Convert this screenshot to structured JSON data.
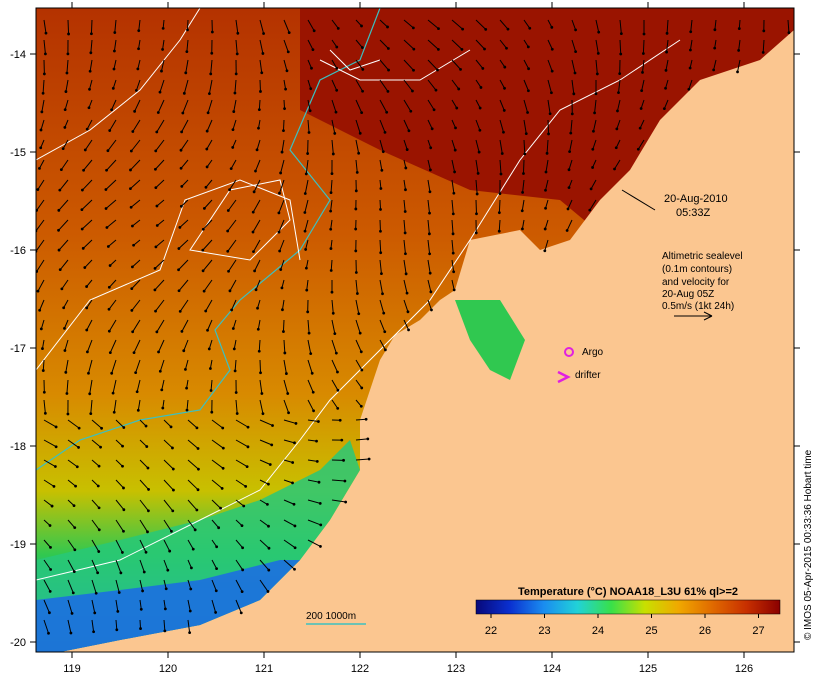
{
  "map": {
    "timestamp_date": "20-Aug-2010",
    "timestamp_time": "05:33Z",
    "altimetry_note": [
      "Altimetric sealevel",
      "(0.1m contours)",
      "and velocity for",
      "20-Aug 05Z",
      "0.5m/s (1kt 24h)"
    ],
    "legend_argo": "Argo",
    "legend_drifter": "drifter",
    "isobath_label": "200  1000m",
    "credit": "© IMOS 05-Apr-2015 00:33:36 Hobart time",
    "colorbar": {
      "title": "Temperature (°C) NOAA18_L3U 61% ql>=2",
      "ticks": [
        "22",
        "23",
        "24",
        "25",
        "26",
        "27"
      ],
      "colors": [
        "#08087a",
        "#0a30d0",
        "#1a8cf0",
        "#21d2d8",
        "#38e04a",
        "#c8e000",
        "#f0a800",
        "#e06a00",
        "#c83000",
        "#8a0000"
      ]
    },
    "lon_ticks": [
      "119",
      "120",
      "121",
      "122",
      "123",
      "124",
      "125",
      "126"
    ],
    "lat_ticks": [
      "-14",
      "-15",
      "-16",
      "-17",
      "-18",
      "-19",
      "-20"
    ],
    "colors": {
      "land": "#fbc690",
      "isobath": "#3cc0c0",
      "argo": "#e020e0",
      "contour": "#ffffff"
    }
  }
}
